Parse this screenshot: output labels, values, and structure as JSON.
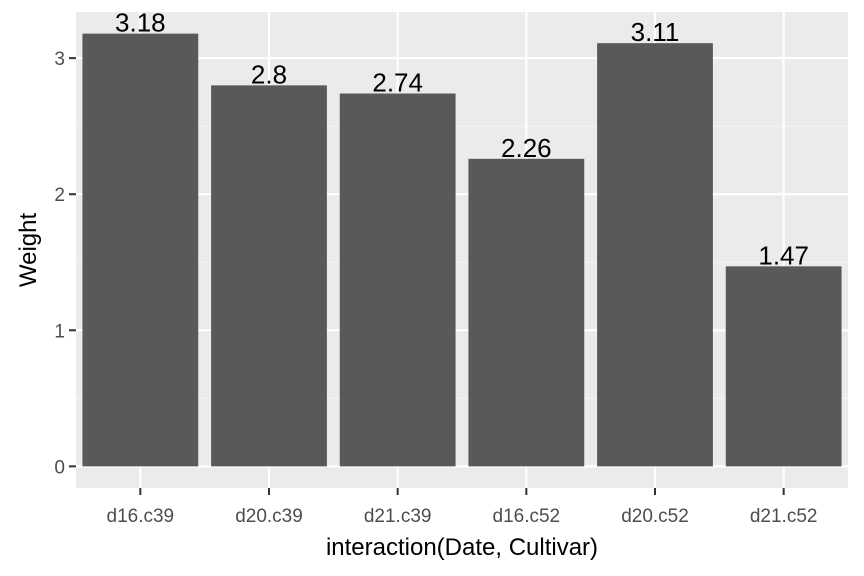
{
  "chart_data": {
    "type": "bar",
    "title": "",
    "xlabel": "interaction(Date, Cultivar)",
    "ylabel": "Weight",
    "categories": [
      "d16.c39",
      "d20.c39",
      "d21.c39",
      "d16.c52",
      "d20.c52",
      "d21.c52"
    ],
    "values": [
      3.18,
      2.8,
      2.74,
      2.26,
      3.11,
      1.47
    ],
    "data_labels": [
      "3.18",
      "2.8",
      "2.74",
      "2.26",
      "3.11",
      "1.47"
    ],
    "ylim": [
      -0.159,
      3.339
    ],
    "yticks": [
      0,
      1,
      2,
      3
    ],
    "ytick_labels": [
      "0",
      "1",
      "2",
      "3"
    ],
    "grid": true,
    "legend": "none",
    "colors": {
      "panel_background": "#ebebeb",
      "grid_major": "#ffffff",
      "grid_minor": "#f5f5f5",
      "bar_fill": "#595959",
      "tick_color": "#333333",
      "tick_label_color": "#4d4d4d",
      "text_color": "#000000"
    }
  }
}
